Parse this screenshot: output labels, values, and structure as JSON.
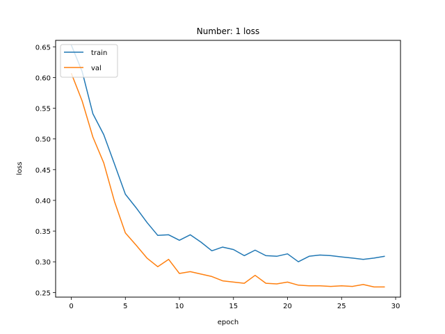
{
  "chart_data": {
    "type": "line",
    "title": "Number: 1 loss",
    "xlabel": "epoch",
    "ylabel": "loss",
    "xlim": [
      -1.45,
      30.45
    ],
    "ylim": [
      0.2425,
      0.6605
    ],
    "xticks": [
      0,
      5,
      10,
      15,
      20,
      25,
      30
    ],
    "xtick_labels": [
      "0",
      "5",
      "10",
      "15",
      "20",
      "25",
      "30"
    ],
    "yticks": [
      0.25,
      0.3,
      0.35,
      0.4,
      0.45,
      0.5,
      0.55,
      0.6,
      0.65
    ],
    "ytick_labels": [
      "0.25",
      "0.30",
      "0.35",
      "0.40",
      "0.45",
      "0.50",
      "0.55",
      "0.60",
      "0.65"
    ],
    "grid": false,
    "legend_position": "top-left",
    "x": [
      0,
      1,
      2,
      3,
      4,
      5,
      6,
      7,
      8,
      9,
      10,
      11,
      12,
      13,
      14,
      15,
      16,
      17,
      18,
      19,
      20,
      21,
      22,
      23,
      24,
      25,
      26,
      27,
      28,
      29
    ],
    "series": [
      {
        "name": "train",
        "color": "#1f77b4",
        "values": [
          0.653,
          0.61,
          0.541,
          0.507,
          0.459,
          0.41,
          0.388,
          0.364,
          0.343,
          0.344,
          0.335,
          0.344,
          0.332,
          0.318,
          0.324,
          0.32,
          0.31,
          0.319,
          0.31,
          0.309,
          0.313,
          0.3,
          0.309,
          0.311,
          0.31,
          0.308,
          0.306,
          0.304,
          0.306,
          0.309
        ]
      },
      {
        "name": "val",
        "color": "#ff7f0e",
        "values": [
          0.607,
          0.562,
          0.503,
          0.461,
          0.398,
          0.347,
          0.327,
          0.306,
          0.292,
          0.304,
          0.281,
          0.284,
          0.28,
          0.276,
          0.269,
          0.267,
          0.265,
          0.278,
          0.265,
          0.264,
          0.267,
          0.262,
          0.261,
          0.261,
          0.26,
          0.261,
          0.26,
          0.263,
          0.259,
          0.259
        ]
      }
    ]
  }
}
